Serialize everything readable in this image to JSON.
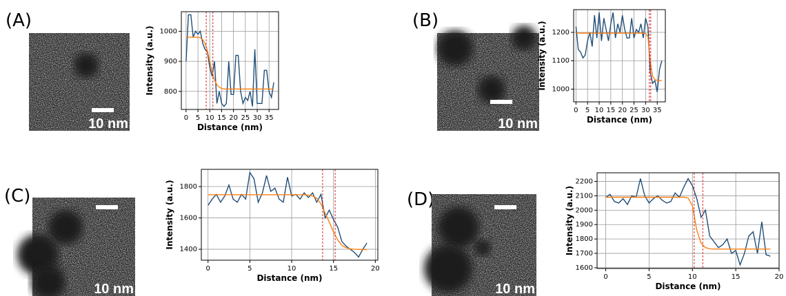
{
  "panels": [
    {
      "label": "(A)",
      "scale_bar": "10 nm"
    },
    {
      "label": "(B)",
      "scale_bar": "10 nm"
    },
    {
      "label": "(C)",
      "scale_bar": "10 nm"
    },
    {
      "label": "(D)",
      "scale_bar": "10 nm"
    }
  ],
  "chart_data": [
    {
      "type": "line",
      "xlabel": "Distance (nm)",
      "ylabel": "Intensity (a.u.)",
      "grid": true,
      "x": [
        0,
        1,
        2,
        3,
        4,
        5,
        6,
        7,
        8,
        9,
        10,
        11,
        12,
        13,
        14,
        15,
        16,
        17,
        18,
        19,
        20,
        21,
        22,
        23,
        24,
        25,
        26,
        27,
        28,
        29,
        30,
        31,
        32,
        33,
        34,
        35,
        36,
        37
      ],
      "series": [
        {
          "color": "#1f4e79",
          "values": [
            900,
            1055,
            1055,
            980,
            1000,
            990,
            1000,
            960,
            940,
            930,
            880,
            850,
            900,
            760,
            800,
            760,
            750,
            760,
            900,
            790,
            790,
            920,
            920,
            800,
            760,
            780,
            770,
            800,
            750,
            940,
            760,
            760,
            760,
            870,
            870,
            800,
            780,
            830
          ]
        },
        {
          "color": "#ff7f0e",
          "values": [
            980,
            980,
            980,
            980,
            980,
            980,
            978,
            972,
            960,
            935,
            900,
            865,
            838,
            822,
            814,
            810,
            808,
            808,
            808,
            808,
            808,
            808,
            808,
            808,
            808,
            808,
            808,
            808,
            808,
            808,
            808,
            808,
            808,
            808,
            808,
            808,
            808,
            808
          ]
        }
      ],
      "vlines": [
        8.5,
        11.3
      ],
      "vline_color": "#d62728",
      "xlim": [
        -2,
        39
      ],
      "ylim": [
        740,
        1065
      ],
      "xticks": [
        0,
        5,
        10,
        15,
        20,
        25,
        30,
        35
      ],
      "yticks": [
        800,
        900,
        1000
      ]
    },
    {
      "type": "line",
      "xlabel": "Distance (nm)",
      "ylabel": "Intensity (a.u.)",
      "grid": true,
      "x": [
        0,
        1,
        2,
        3,
        4,
        5,
        6,
        7,
        8,
        9,
        10,
        11,
        12,
        13,
        14,
        15,
        16,
        17,
        18,
        19,
        20,
        21,
        22,
        23,
        24,
        25,
        26,
        27,
        28,
        29,
        30,
        31,
        32,
        33,
        34,
        35,
        36,
        37
      ],
      "series": [
        {
          "color": "#1f4e79",
          "values": [
            1220,
            1140,
            1130,
            1110,
            1120,
            1170,
            1200,
            1150,
            1260,
            1180,
            1270,
            1170,
            1250,
            1210,
            1170,
            1230,
            1270,
            1180,
            1230,
            1200,
            1260,
            1210,
            1180,
            1180,
            1250,
            1180,
            1210,
            1200,
            1230,
            1180,
            1250,
            1220,
            1060,
            1020,
            1030,
            990,
            1070,
            1100
          ]
        },
        {
          "color": "#ff7f0e",
          "values": [
            1197,
            1197,
            1197,
            1197,
            1197,
            1197,
            1197,
            1197,
            1197,
            1197,
            1197,
            1197,
            1197,
            1197,
            1197,
            1197,
            1197,
            1197,
            1197,
            1197,
            1197,
            1197,
            1197,
            1197,
            1197,
            1197,
            1197,
            1197,
            1197,
            1197,
            1196,
            1185,
            1100,
            1045,
            1033,
            1031,
            1030,
            1030
          ]
        }
      ],
      "vlines": [
        31.6,
        32.2
      ],
      "vline_color": "#d62728",
      "xlim": [
        -1,
        38.5
      ],
      "ylim": [
        955,
        1280
      ],
      "xticks": [
        0,
        5,
        10,
        15,
        20,
        25,
        30,
        35
      ],
      "yticks": [
        1000,
        1100,
        1200
      ]
    },
    {
      "type": "line",
      "xlabel": "Distance (nm)",
      "ylabel": "Intensity (a.u.)",
      "grid": true,
      "x": [
        0,
        0.5,
        1,
        1.5,
        2,
        2.5,
        3,
        3.5,
        4,
        4.5,
        5,
        5.5,
        6,
        6.5,
        7,
        7.5,
        8,
        8.5,
        9,
        9.5,
        10,
        10.5,
        11,
        11.5,
        12,
        12.5,
        13,
        13.5,
        14,
        14.5,
        15,
        15.5,
        16,
        16.5,
        17,
        17.5,
        18,
        18.5,
        19
      ],
      "series": [
        {
          "color": "#1f4e79",
          "values": [
            1680,
            1720,
            1750,
            1700,
            1740,
            1810,
            1720,
            1700,
            1750,
            1720,
            1890,
            1850,
            1700,
            1760,
            1870,
            1770,
            1790,
            1720,
            1700,
            1860,
            1740,
            1750,
            1720,
            1760,
            1730,
            1760,
            1700,
            1750,
            1600,
            1650,
            1590,
            1540,
            1450,
            1420,
            1400,
            1380,
            1350,
            1400,
            1440
          ]
        },
        {
          "color": "#ff7f0e",
          "values": [
            1748,
            1748,
            1748,
            1748,
            1748,
            1748,
            1748,
            1748,
            1748,
            1748,
            1748,
            1748,
            1748,
            1748,
            1748,
            1748,
            1748,
            1748,
            1748,
            1748,
            1748,
            1748,
            1748,
            1748,
            1745,
            1740,
            1725,
            1690,
            1630,
            1573,
            1510,
            1460,
            1425,
            1410,
            1402,
            1400,
            1399,
            1398,
            1398
          ]
        }
      ],
      "vlines": [
        13.7,
        15.2
      ],
      "vline_color": "#d62728",
      "xlim": [
        -0.8,
        20.3
      ],
      "ylim": [
        1330,
        1910
      ],
      "xticks": [
        0,
        5,
        10,
        15,
        20
      ],
      "yticks": [
        1400,
        1600,
        1800
      ]
    },
    {
      "type": "line",
      "xlabel": "Distance (nm)",
      "ylabel": "Intensity (a.u.)",
      "grid": true,
      "x": [
        0,
        0.5,
        1,
        1.5,
        2,
        2.5,
        3,
        3.5,
        4,
        4.5,
        5,
        5.5,
        6,
        6.5,
        7,
        7.5,
        8,
        8.5,
        9,
        9.5,
        10,
        10.5,
        11,
        11.5,
        12,
        12.5,
        13,
        13.5,
        14,
        14.5,
        15,
        15.5,
        16,
        16.5,
        17,
        17.5,
        18,
        18.5,
        19
      ],
      "series": [
        {
          "color": "#1f4e79",
          "values": [
            2090,
            2110,
            2060,
            2050,
            2080,
            2040,
            2100,
            2090,
            2220,
            2100,
            2050,
            2080,
            2100,
            2070,
            2050,
            2060,
            2120,
            2090,
            2160,
            2220,
            2170,
            2080,
            1950,
            2000,
            1820,
            1780,
            1740,
            1760,
            1800,
            1700,
            1720,
            1620,
            1700,
            1820,
            1850,
            1700,
            1920,
            1690,
            1680
          ]
        },
        {
          "color": "#ff7f0e",
          "values": [
            2090,
            2090,
            2090,
            2090,
            2090,
            2090,
            2090,
            2090,
            2090,
            2090,
            2090,
            2090,
            2090,
            2090,
            2090,
            2090,
            2090,
            2090,
            2090,
            2085,
            2030,
            1860,
            1770,
            1740,
            1732,
            1730,
            1730,
            1730,
            1730,
            1730,
            1730,
            1730,
            1730,
            1730,
            1730,
            1730,
            1730,
            1730,
            1730
          ]
        }
      ],
      "vlines": [
        10.2,
        11.2
      ],
      "vline_color": "#d62728",
      "xlim": [
        -1,
        20
      ],
      "ylim": [
        1595,
        2260
      ],
      "xticks": [
        0,
        5,
        10,
        15,
        20
      ],
      "yticks": [
        1600,
        1700,
        1800,
        1900,
        2000,
        2100,
        2200
      ]
    }
  ]
}
